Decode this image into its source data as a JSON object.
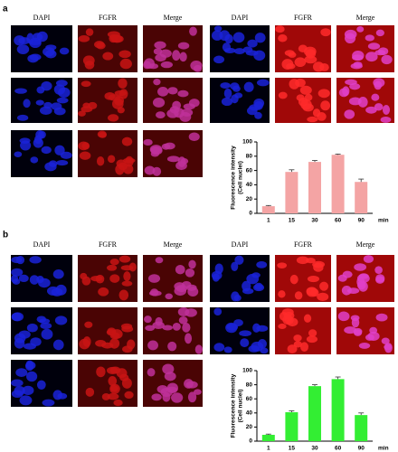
{
  "panels": [
    {
      "label": "a",
      "headers": [
        "DAPI",
        "FGFR",
        "Merge",
        "DAPI",
        "FGFR",
        "Merge"
      ]
    },
    {
      "label": "b",
      "headers": [
        "DAPI",
        "FGFR",
        "Merge",
        "DAPI",
        "FGFR",
        "Merge"
      ]
    }
  ],
  "chart_data": [
    {
      "type": "bar",
      "categories": [
        "1",
        "15",
        "30",
        "60",
        "90"
      ],
      "values": [
        10,
        58,
        72,
        82,
        44
      ],
      "error": [
        1,
        3,
        2,
        1,
        4
      ],
      "color": "#f4a4a4",
      "ylim": [
        0,
        100
      ],
      "yticks": [
        0,
        20,
        40,
        60,
        80,
        100
      ],
      "ylabel": [
        "Fluorescence intensity",
        "(Cell nuclei)"
      ],
      "xlabel": "min"
    },
    {
      "type": "bar",
      "categories": [
        "1",
        "15",
        "30",
        "60",
        "90"
      ],
      "values": [
        9,
        41,
        78,
        88,
        37
      ],
      "error": [
        1,
        2,
        2,
        3,
        3
      ],
      "color": "#33ee33",
      "ylim": [
        0,
        100
      ],
      "yticks": [
        0,
        20,
        40,
        60,
        80,
        100
      ],
      "ylabel": [
        "Fluorescence intensity",
        "(Cell nuclei)"
      ],
      "xlabel": "min"
    }
  ]
}
